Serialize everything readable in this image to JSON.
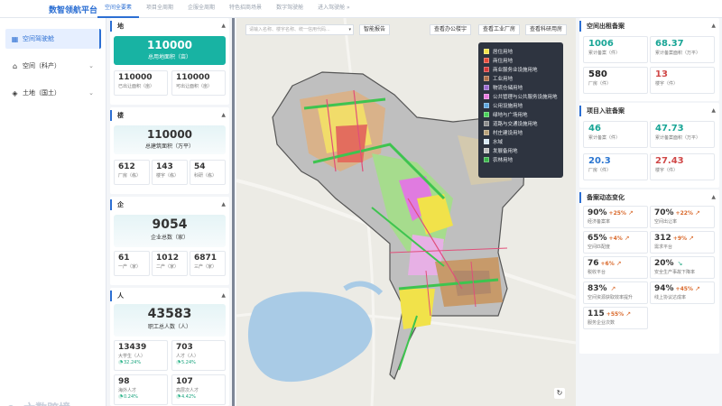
{
  "header": {
    "brand": "数智领航平台",
    "tabs": [
      "空间全要素",
      "项目全周期",
      "企服全周期",
      "特色招商场景",
      "数字驾驶舱",
      "进入驾驶舱 »"
    ]
  },
  "leftnav": {
    "items": [
      {
        "label": "空间驾驶舱",
        "icon": "grid-icon"
      },
      {
        "label": "空间（科产）",
        "icon": "home-icon"
      },
      {
        "label": "土地（国土）",
        "icon": "layers-icon"
      }
    ],
    "logo": "六数跨境"
  },
  "stats": {
    "land": {
      "title": "地",
      "total": {
        "value": "110000",
        "label": "总用地面积（亩）"
      },
      "a": {
        "value": "110000",
        "label": "已出让面积（亩）"
      },
      "b": {
        "value": "110000",
        "label": "可出让面积（亩）"
      }
    },
    "building": {
      "title": "楼",
      "total": {
        "value": "110000",
        "label": "总建筑面积（万平）"
      },
      "a": {
        "value": "612",
        "label": "厂房（栋）"
      },
      "b": {
        "value": "143",
        "label": "楼宇（栋）"
      },
      "c": {
        "value": "54",
        "label": "科研（栋）"
      }
    },
    "enterprise": {
      "title": "企",
      "total": {
        "value": "9054",
        "label": "企业总数（家）"
      },
      "a": {
        "value": "61",
        "label": "一产（家）"
      },
      "b": {
        "value": "1012",
        "label": "二产（家）"
      },
      "c": {
        "value": "6871",
        "label": "三产（家）"
      }
    },
    "people": {
      "title": "人",
      "total": {
        "value": "43583",
        "label": "职工总人数（人）"
      },
      "a": {
        "value": "13439",
        "label": "大学生（人）",
        "pct": "32.24%"
      },
      "b": {
        "value": "703",
        "label": "人才（人）",
        "pct": "5.24%"
      },
      "c": {
        "value": "98",
        "label": "海外人才",
        "pct": "0.24%"
      },
      "d": {
        "value": "107",
        "label": "高层次人才",
        "pct": "4.42%"
      }
    }
  },
  "map": {
    "search_placeholder": "请输入名称、楼宇名称、统一信用代码...",
    "smart_report": "智能报告",
    "btn_office": "查看办公楼宇",
    "btn_factory": "查看工业厂房",
    "btn_research": "查看科研用房",
    "refresh_icon": "refresh-icon",
    "legend": [
      {
        "label": "居住用地",
        "color": "#f2e24a"
      },
      {
        "label": "商住用地",
        "color": "#e84c3c"
      },
      {
        "label": "商业服务业设施用地",
        "color": "#d63a3a"
      },
      {
        "label": "工业用地",
        "color": "#b0704a"
      },
      {
        "label": "物流仓储用地",
        "color": "#9b6bd0"
      },
      {
        "label": "公共管理与公共服务设施用地",
        "color": "#e97be0"
      },
      {
        "label": "公用设施用地",
        "color": "#5fa8e0"
      },
      {
        "label": "绿地与广场用地",
        "color": "#49d15a"
      },
      {
        "label": "道路与交通设施用地",
        "color": "#8c8c8c"
      },
      {
        "label": "村庄建设用地",
        "color": "#b9a27a"
      },
      {
        "label": "水域",
        "color": "#d8e8f5"
      },
      {
        "label": "发展备用地",
        "color": "#bfbfbf"
      },
      {
        "label": "农林用地",
        "color": "#39b54a"
      }
    ]
  },
  "right": {
    "rent": {
      "title": "空间出租备案",
      "k1": {
        "value": "1006",
        "label": "累计备案（件）"
      },
      "k2": {
        "value": "68.37",
        "label": "累计备案面积（万平）"
      },
      "k3": {
        "value": "580",
        "label": "厂房（件）"
      },
      "k4": {
        "value": "13",
        "label": "楼宇（件）"
      }
    },
    "settle": {
      "title": "项目入驻备案",
      "k1": {
        "value": "46",
        "label": "累计备案（件）"
      },
      "k2": {
        "value": "47.73",
        "label": "累计备案面积（万平）"
      },
      "k3": {
        "value": "20.3",
        "label": "厂房（件）"
      },
      "k4": {
        "value": "27.43",
        "label": "楼宇（件）"
      }
    },
    "dyn": {
      "title": "备案动态变化",
      "items": [
        {
          "value": "90%",
          "delta": "+25%",
          "label": "经济备案率"
        },
        {
          "value": "70%",
          "delta": "+22%",
          "label": "空间出让率"
        },
        {
          "value": "65%",
          "delta": "+4%",
          "label": "空间匹配度"
        },
        {
          "value": "312",
          "delta": "+9%",
          "label": "需求平台"
        },
        {
          "value": "76",
          "delta": "+6%",
          "label": "税收平台"
        },
        {
          "value": "20%",
          "delta": "",
          "label": "安全生产事故下降率"
        },
        {
          "value": "83%",
          "delta": "",
          "label": "空间资源获取效率提升"
        },
        {
          "value": "94%",
          "delta": "+45%",
          "label": "线上协议达成率"
        },
        {
          "value": "115",
          "delta": "+55%",
          "label": "服务企业次数"
        }
      ]
    }
  }
}
